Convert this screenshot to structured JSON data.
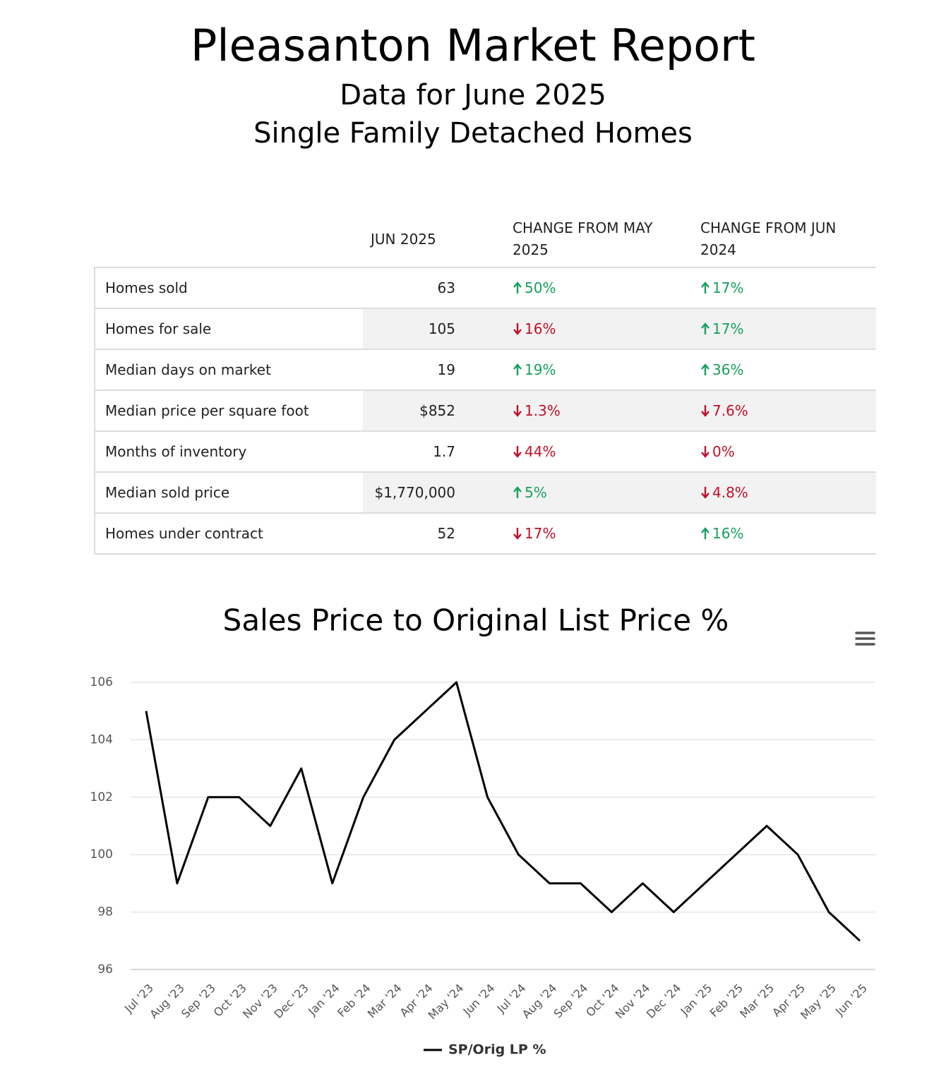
{
  "header": {
    "title": "Pleasanton Market Report",
    "subtitle": "Data for June 2025",
    "segment": "Single Family Detached Homes"
  },
  "table": {
    "columns": [
      "JUN 2025",
      "CHANGE FROM MAY 2025",
      "CHANGE FROM JUN 2024"
    ],
    "rows": [
      {
        "label": "Homes sold",
        "value": "63",
        "changes": [
          {
            "text": "50%",
            "direction": "up"
          },
          {
            "text": "17%",
            "direction": "up"
          }
        ]
      },
      {
        "label": "Homes for sale",
        "value": "105",
        "changes": [
          {
            "text": "16%",
            "direction": "down"
          },
          {
            "text": "17%",
            "direction": "up"
          }
        ]
      },
      {
        "label": "Median days on market",
        "value": "19",
        "changes": [
          {
            "text": "19%",
            "direction": "up"
          },
          {
            "text": "36%",
            "direction": "up"
          }
        ]
      },
      {
        "label": "Median price per square foot",
        "value": "$852",
        "changes": [
          {
            "text": "1.3%",
            "direction": "down"
          },
          {
            "text": "7.6%",
            "direction": "down"
          }
        ]
      },
      {
        "label": "Months of inventory",
        "value": "1.7",
        "changes": [
          {
            "text": "44%",
            "direction": "down"
          },
          {
            "text": "0%",
            "direction": "down"
          }
        ]
      },
      {
        "label": "Median sold price",
        "value": "$1,770,000",
        "changes": [
          {
            "text": "5%",
            "direction": "up"
          },
          {
            "text": "4.8%",
            "direction": "down"
          }
        ]
      },
      {
        "label": "Homes under contract",
        "value": "52",
        "changes": [
          {
            "text": "17%",
            "direction": "down"
          },
          {
            "text": "16%",
            "direction": "up"
          }
        ]
      }
    ]
  },
  "chart_data": {
    "type": "line",
    "title": "Sales Price to Original List Price %",
    "categories": [
      "Jul '23",
      "Aug '23",
      "Sep '23",
      "Oct '23",
      "Nov '23",
      "Dec '23",
      "Jan '24",
      "Feb '24",
      "Mar '24",
      "Apr '24",
      "May '24",
      "Jun '24",
      "Jul '24",
      "Aug '24",
      "Sep '24",
      "Oct '24",
      "Nov '24",
      "Dec '24",
      "Jan '25",
      "Feb '25",
      "Mar '25",
      "Apr '25",
      "May '25",
      "Jun '25"
    ],
    "series": [
      {
        "name": "SP/Orig LP %",
        "color": "#000000",
        "values": [
          105,
          99,
          102,
          102,
          101,
          103,
          99,
          102,
          104,
          105,
          106,
          102,
          100,
          99,
          99,
          98,
          99,
          98,
          99,
          100,
          101,
          100,
          98,
          97
        ]
      }
    ],
    "ylim": [
      96,
      106
    ],
    "yticks": [
      96,
      98,
      100,
      102,
      104,
      106
    ],
    "grid": true
  }
}
